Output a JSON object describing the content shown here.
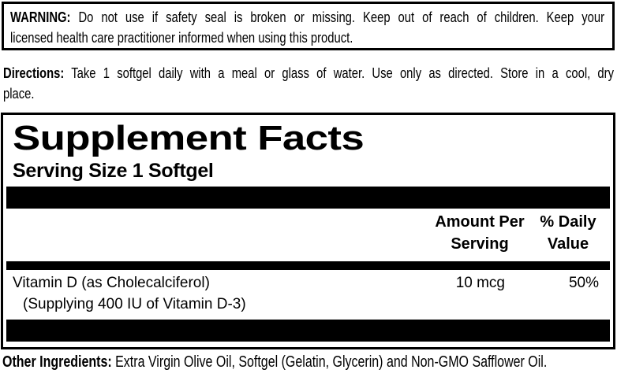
{
  "warning": {
    "label": "WARNING:",
    "line1": "Do not use if safety seal is broken or missing. Keep out of reach of children. Keep your",
    "line2": "licensed health care practitioner informed when using this product."
  },
  "directions": {
    "label": "Directions:",
    "line1": "Take 1 softgel daily with a meal or glass of water. Use only as directed. Store in a cool, dry",
    "line2": "place."
  },
  "supplement_facts": {
    "title": "Supplement Facts",
    "serving_size": "Serving Size 1 Softgel",
    "columns": {
      "amount": "Amount Per\nServing",
      "daily_value": "% Daily\nValue"
    },
    "rows": [
      {
        "name": "Vitamin D (as Cholecalciferol)",
        "detail": "(Supplying 400 IU of Vitamin D-3)",
        "amount": "10 mcg",
        "daily_value": "50%"
      }
    ]
  },
  "other_ingredients": {
    "label": "Other Ingredients:",
    "text": "Extra Virgin Olive Oil, Softgel (Gelatin, Glycerin) and Non-GMO Safflower Oil."
  },
  "colors": {
    "ink": "#000000",
    "paper": "#ffffff"
  }
}
